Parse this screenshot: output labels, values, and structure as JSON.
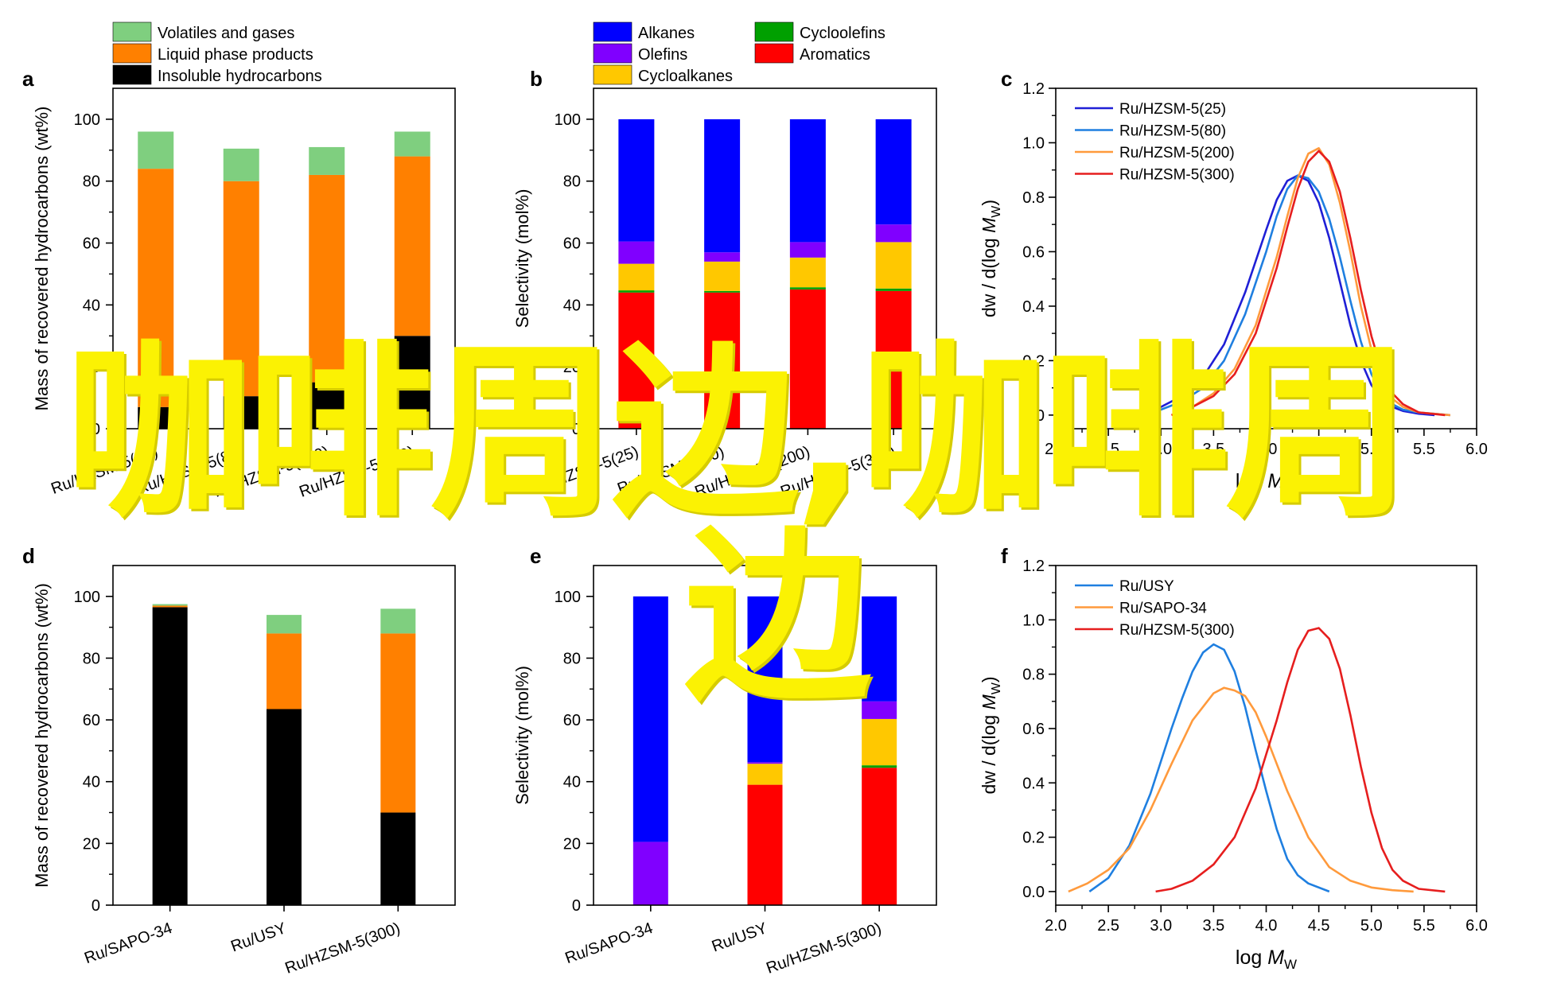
{
  "colors": {
    "volatiles": "#7fcf7f",
    "liquid": "#ff8000",
    "insoluble": "#000000",
    "alkanes": "#0000ff",
    "olefins": "#8000ff",
    "cycloalkanes": "#ffc800",
    "cycloolefins": "#00a000",
    "aromatics": "#ff0000",
    "line_25": "#1f1fd6",
    "line_80": "#1f7fe0",
    "line_200": "#ff9a3c",
    "line_300": "#e61e1e",
    "watermark": "#fbf203"
  },
  "watermark": {
    "line1": "咖啡周边,咖啡周",
    "line2": "边"
  },
  "chart_data": [
    {
      "panel": "a",
      "type": "bar",
      "stacked": true,
      "categories": [
        "Ru/HZSM-5(25)",
        "Ru/HZSM-5(80)",
        "Ru/HZSM-5(200)",
        "Ru/HZSM-5(300)"
      ],
      "ylabel": "Mass of recovered hydrocarbons (wt%)",
      "ylim": [
        0,
        110
      ],
      "yticks": [
        "0",
        "20",
        "40",
        "60",
        "80",
        "100"
      ],
      "legend": "top-left, outside",
      "series": [
        {
          "name": "Insoluble hydrocarbons",
          "color_key": "insoluble",
          "values": [
            7,
            10.5,
            15,
            30
          ]
        },
        {
          "name": "Liquid phase products",
          "color_key": "liquid",
          "values": [
            77,
            69.5,
            67,
            58
          ]
        },
        {
          "name": "Volatiles and gases",
          "color_key": "volatiles",
          "values": [
            12,
            10.5,
            9,
            8
          ]
        }
      ]
    },
    {
      "panel": "b",
      "type": "bar",
      "stacked": true,
      "categories": [
        "Ru/HZSM-5(25)",
        "Ru/HZSM-5(80)",
        "Ru/HZSM-5(200)",
        "Ru/HZSM-5(300)"
      ],
      "ylabel": "Selectivity (mol%)",
      "ylim": [
        0,
        110
      ],
      "yticks": [
        "0",
        "20",
        "40",
        "60",
        "80",
        "100"
      ],
      "legend": "top, outside, two columns",
      "series": [
        {
          "name": "Aromatics",
          "color_key": "aromatics",
          "values": [
            44,
            44,
            45,
            44.5
          ]
        },
        {
          "name": "Cycloolefins",
          "color_key": "cycloolefins",
          "values": [
            0.7,
            0.5,
            0.7,
            0.8
          ]
        },
        {
          "name": "Cycloalkanes",
          "color_key": "cycloalkanes",
          "values": [
            8.6,
            9.5,
            9.6,
            15
          ]
        },
        {
          "name": "Olefins",
          "color_key": "olefins",
          "values": [
            7.2,
            3,
            5,
            5.7
          ]
        },
        {
          "name": "Alkanes",
          "color_key": "alkanes",
          "values": [
            39.5,
            43,
            39.7,
            34
          ]
        }
      ],
      "legend_layout": [
        [
          "Alkanes",
          "Cycloolefins"
        ],
        [
          "Olefins",
          "Aromatics"
        ],
        [
          "Cycloalkanes"
        ]
      ]
    },
    {
      "panel": "c",
      "type": "line",
      "xlabel_base": "log ",
      "xlabel_italic": "M",
      "xlabel_sub": "W",
      "ylabel_pre": "dw / d(log ",
      "ylabel_italic": "M",
      "ylabel_sub": "W",
      "ylabel_post": ")",
      "xlim": [
        2.0,
        6.0
      ],
      "ylim": [
        -0.05,
        1.2
      ],
      "xticks": [
        "2.0",
        "2.5",
        "3.0",
        "3.5",
        "4.0",
        "4.5",
        "5.0",
        "5.5",
        "6.0"
      ],
      "yticks": [
        "0.0",
        "0.2",
        "0.4",
        "0.6",
        "0.8",
        "1.0",
        "1.2"
      ],
      "legend": "top-left",
      "series": [
        {
          "name": "Ru/HZSM-5(25)",
          "color_key": "line_25",
          "x": [
            2.85,
            3.0,
            3.2,
            3.4,
            3.6,
            3.8,
            4.0,
            4.1,
            4.2,
            4.3,
            4.4,
            4.5,
            4.6,
            4.7,
            4.8,
            4.9,
            5.0,
            5.1,
            5.2,
            5.3,
            5.45,
            5.6
          ],
          "y": [
            0.01,
            0.03,
            0.07,
            0.14,
            0.26,
            0.45,
            0.68,
            0.79,
            0.86,
            0.88,
            0.86,
            0.78,
            0.65,
            0.49,
            0.33,
            0.2,
            0.11,
            0.06,
            0.03,
            0.015,
            0.005,
            0.0
          ]
        },
        {
          "name": "Ru/HZSM-5(80)",
          "color_key": "line_80",
          "x": [
            2.85,
            3.0,
            3.2,
            3.4,
            3.6,
            3.8,
            4.0,
            4.1,
            4.2,
            4.3,
            4.4,
            4.5,
            4.6,
            4.7,
            4.8,
            4.9,
            5.0,
            5.1,
            5.2,
            5.3,
            5.45,
            5.75
          ],
          "y": [
            0.0,
            0.02,
            0.05,
            0.1,
            0.2,
            0.37,
            0.6,
            0.73,
            0.83,
            0.88,
            0.87,
            0.82,
            0.72,
            0.58,
            0.42,
            0.27,
            0.15,
            0.08,
            0.04,
            0.02,
            0.01,
            0.0
          ]
        },
        {
          "name": "Ru/HZSM-5(200)",
          "color_key": "line_200",
          "x": [
            3.1,
            3.3,
            3.5,
            3.7,
            3.9,
            4.1,
            4.2,
            4.3,
            4.4,
            4.5,
            4.6,
            4.7,
            4.8,
            4.9,
            5.0,
            5.1,
            5.2,
            5.3,
            5.45,
            5.75
          ],
          "y": [
            0.0,
            0.03,
            0.08,
            0.17,
            0.33,
            0.58,
            0.73,
            0.87,
            0.96,
            0.98,
            0.92,
            0.78,
            0.6,
            0.4,
            0.24,
            0.12,
            0.06,
            0.03,
            0.01,
            0.0
          ]
        },
        {
          "name": "Ru/HZSM-5(300)",
          "color_key": "line_300",
          "x": [
            3.1,
            3.3,
            3.5,
            3.7,
            3.9,
            4.1,
            4.2,
            4.3,
            4.4,
            4.5,
            4.6,
            4.7,
            4.8,
            4.9,
            5.0,
            5.1,
            5.2,
            5.3,
            5.45,
            5.7
          ],
          "y": [
            0.0,
            0.03,
            0.07,
            0.15,
            0.3,
            0.54,
            0.69,
            0.83,
            0.93,
            0.97,
            0.93,
            0.82,
            0.65,
            0.46,
            0.29,
            0.16,
            0.08,
            0.04,
            0.01,
            0.0
          ]
        }
      ]
    },
    {
      "panel": "d",
      "type": "bar",
      "stacked": true,
      "categories": [
        "Ru/SAPO-34",
        "Ru/USY",
        "Ru/HZSM-5(300)"
      ],
      "ylabel": "Mass of recovered hydrocarbons (wt%)",
      "ylim": [
        0,
        110
      ],
      "yticks": [
        "0",
        "20",
        "40",
        "60",
        "80",
        "100"
      ],
      "series": [
        {
          "name": "Insoluble hydrocarbons",
          "color_key": "insoluble",
          "values": [
            96.5,
            63.5,
            30
          ]
        },
        {
          "name": "Liquid phase products",
          "color_key": "liquid",
          "values": [
            0.5,
            24.5,
            58
          ]
        },
        {
          "name": "Volatiles and gases",
          "color_key": "volatiles",
          "values": [
            0.5,
            6,
            8
          ]
        }
      ]
    },
    {
      "panel": "e",
      "type": "bar",
      "stacked": true,
      "categories": [
        "Ru/SAPO-34",
        "Ru/USY",
        "Ru/HZSM-5(300)"
      ],
      "ylabel": "Selectivity (mol%)",
      "ylim": [
        0,
        110
      ],
      "yticks": [
        "0",
        "20",
        "40",
        "60",
        "80",
        "100"
      ],
      "series": [
        {
          "name": "Aromatics",
          "color_key": "aromatics",
          "values": [
            0,
            39,
            44.5
          ]
        },
        {
          "name": "Cycloolefins",
          "color_key": "cycloolefins",
          "values": [
            0,
            0,
            0.8
          ]
        },
        {
          "name": "Cycloalkanes",
          "color_key": "cycloalkanes",
          "values": [
            0,
            6.8,
            15
          ]
        },
        {
          "name": "Olefins",
          "color_key": "olefins",
          "values": [
            20.5,
            0.5,
            5.7
          ]
        },
        {
          "name": "Alkanes",
          "color_key": "alkanes",
          "values": [
            79.5,
            53.7,
            34
          ]
        }
      ]
    },
    {
      "panel": "f",
      "type": "line",
      "xlabel_base": "log ",
      "xlabel_italic": "M",
      "xlabel_sub": "W",
      "ylabel_pre": "dw / d(log ",
      "ylabel_italic": "M",
      "ylabel_sub": "W",
      "ylabel_post": ")",
      "xlim": [
        2.0,
        6.0
      ],
      "ylim": [
        -0.05,
        1.2
      ],
      "xticks": [
        "2.0",
        "2.5",
        "3.0",
        "3.5",
        "4.0",
        "4.5",
        "5.0",
        "5.5",
        "6.0"
      ],
      "yticks": [
        "0.0",
        "0.2",
        "0.4",
        "0.6",
        "0.8",
        "1.0",
        "1.2"
      ],
      "legend": "top-left",
      "series": [
        {
          "name": "Ru/USY",
          "color_key": "line_80",
          "x": [
            2.32,
            2.5,
            2.7,
            2.9,
            3.1,
            3.2,
            3.3,
            3.4,
            3.5,
            3.6,
            3.7,
            3.8,
            3.9,
            4.0,
            4.1,
            4.2,
            4.3,
            4.4,
            4.6
          ],
          "y": [
            0.0,
            0.05,
            0.17,
            0.36,
            0.6,
            0.71,
            0.81,
            0.88,
            0.91,
            0.89,
            0.81,
            0.68,
            0.52,
            0.37,
            0.23,
            0.12,
            0.06,
            0.03,
            0.0
          ]
        },
        {
          "name": "Ru/SAPO-34",
          "color_key": "line_200",
          "x": [
            2.12,
            2.3,
            2.5,
            2.7,
            2.9,
            3.1,
            3.3,
            3.5,
            3.6,
            3.7,
            3.8,
            3.9,
            4.0,
            4.2,
            4.4,
            4.6,
            4.8,
            5.0,
            5.2,
            5.4
          ],
          "y": [
            0.0,
            0.03,
            0.08,
            0.16,
            0.3,
            0.47,
            0.63,
            0.73,
            0.75,
            0.74,
            0.72,
            0.66,
            0.57,
            0.37,
            0.2,
            0.09,
            0.04,
            0.015,
            0.005,
            0.0
          ]
        },
        {
          "name": "Ru/HZSM-5(300)",
          "color_key": "line_300",
          "x": [
            2.95,
            3.1,
            3.3,
            3.5,
            3.7,
            3.9,
            4.1,
            4.2,
            4.3,
            4.4,
            4.5,
            4.6,
            4.7,
            4.8,
            4.9,
            5.0,
            5.1,
            5.2,
            5.3,
            5.45,
            5.7
          ],
          "y": [
            0.0,
            0.01,
            0.04,
            0.1,
            0.2,
            0.38,
            0.63,
            0.77,
            0.89,
            0.96,
            0.97,
            0.93,
            0.82,
            0.65,
            0.46,
            0.29,
            0.16,
            0.08,
            0.04,
            0.01,
            0.0
          ]
        }
      ]
    }
  ]
}
